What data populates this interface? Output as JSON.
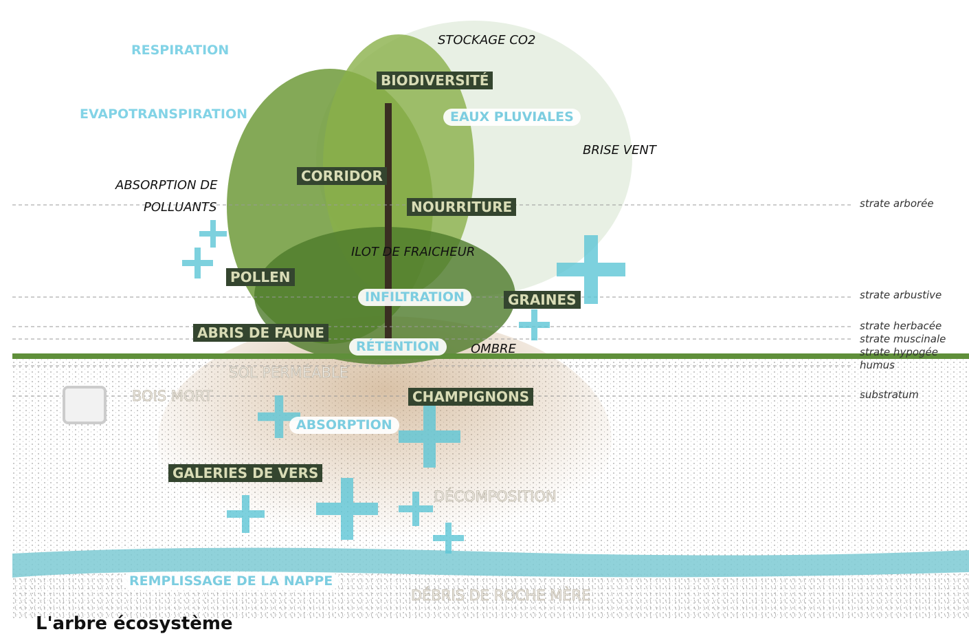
{
  "title": "L'arbre écosystème",
  "functions": {
    "respiration": "RESPIRATION",
    "evapotranspiration": "EVAPOTRANSPIRATION",
    "stockage_co2": "STOCKAGE CO2",
    "brise_vent": "BRISE VENT",
    "absorption_polluants": [
      "ABSORPTION DE",
      "POLLUANTS"
    ],
    "ilot_fraicheur": "ILOT DE FRAICHEUR",
    "ombre": "OMBRE"
  },
  "biodiversity": [
    "BIODIVERSITÉ",
    "CORRIDOR",
    "NOURRITURE",
    "POLLEN",
    "GRAINES",
    "ABRIS DE FAUNE",
    "CHAMPIGNONS",
    "GALERIES DE VERS"
  ],
  "water": [
    "EAUX PLUVIALES",
    "INFILTRATION",
    "RÉTENTION",
    "ABSORPTION",
    "REMPLISSAGE DE LA NAPPE"
  ],
  "soil": [
    "SOL PERMÉABLE",
    "BOIS MORT",
    "DÉCOMPOSITION",
    "DÉBRIS DE ROCHE MÈRE"
  ],
  "strata": [
    "strate arborée",
    "strate arbustive",
    "strate herbacée",
    "strate muscinale",
    "strate hypogée",
    "humus",
    "substratum"
  ]
}
